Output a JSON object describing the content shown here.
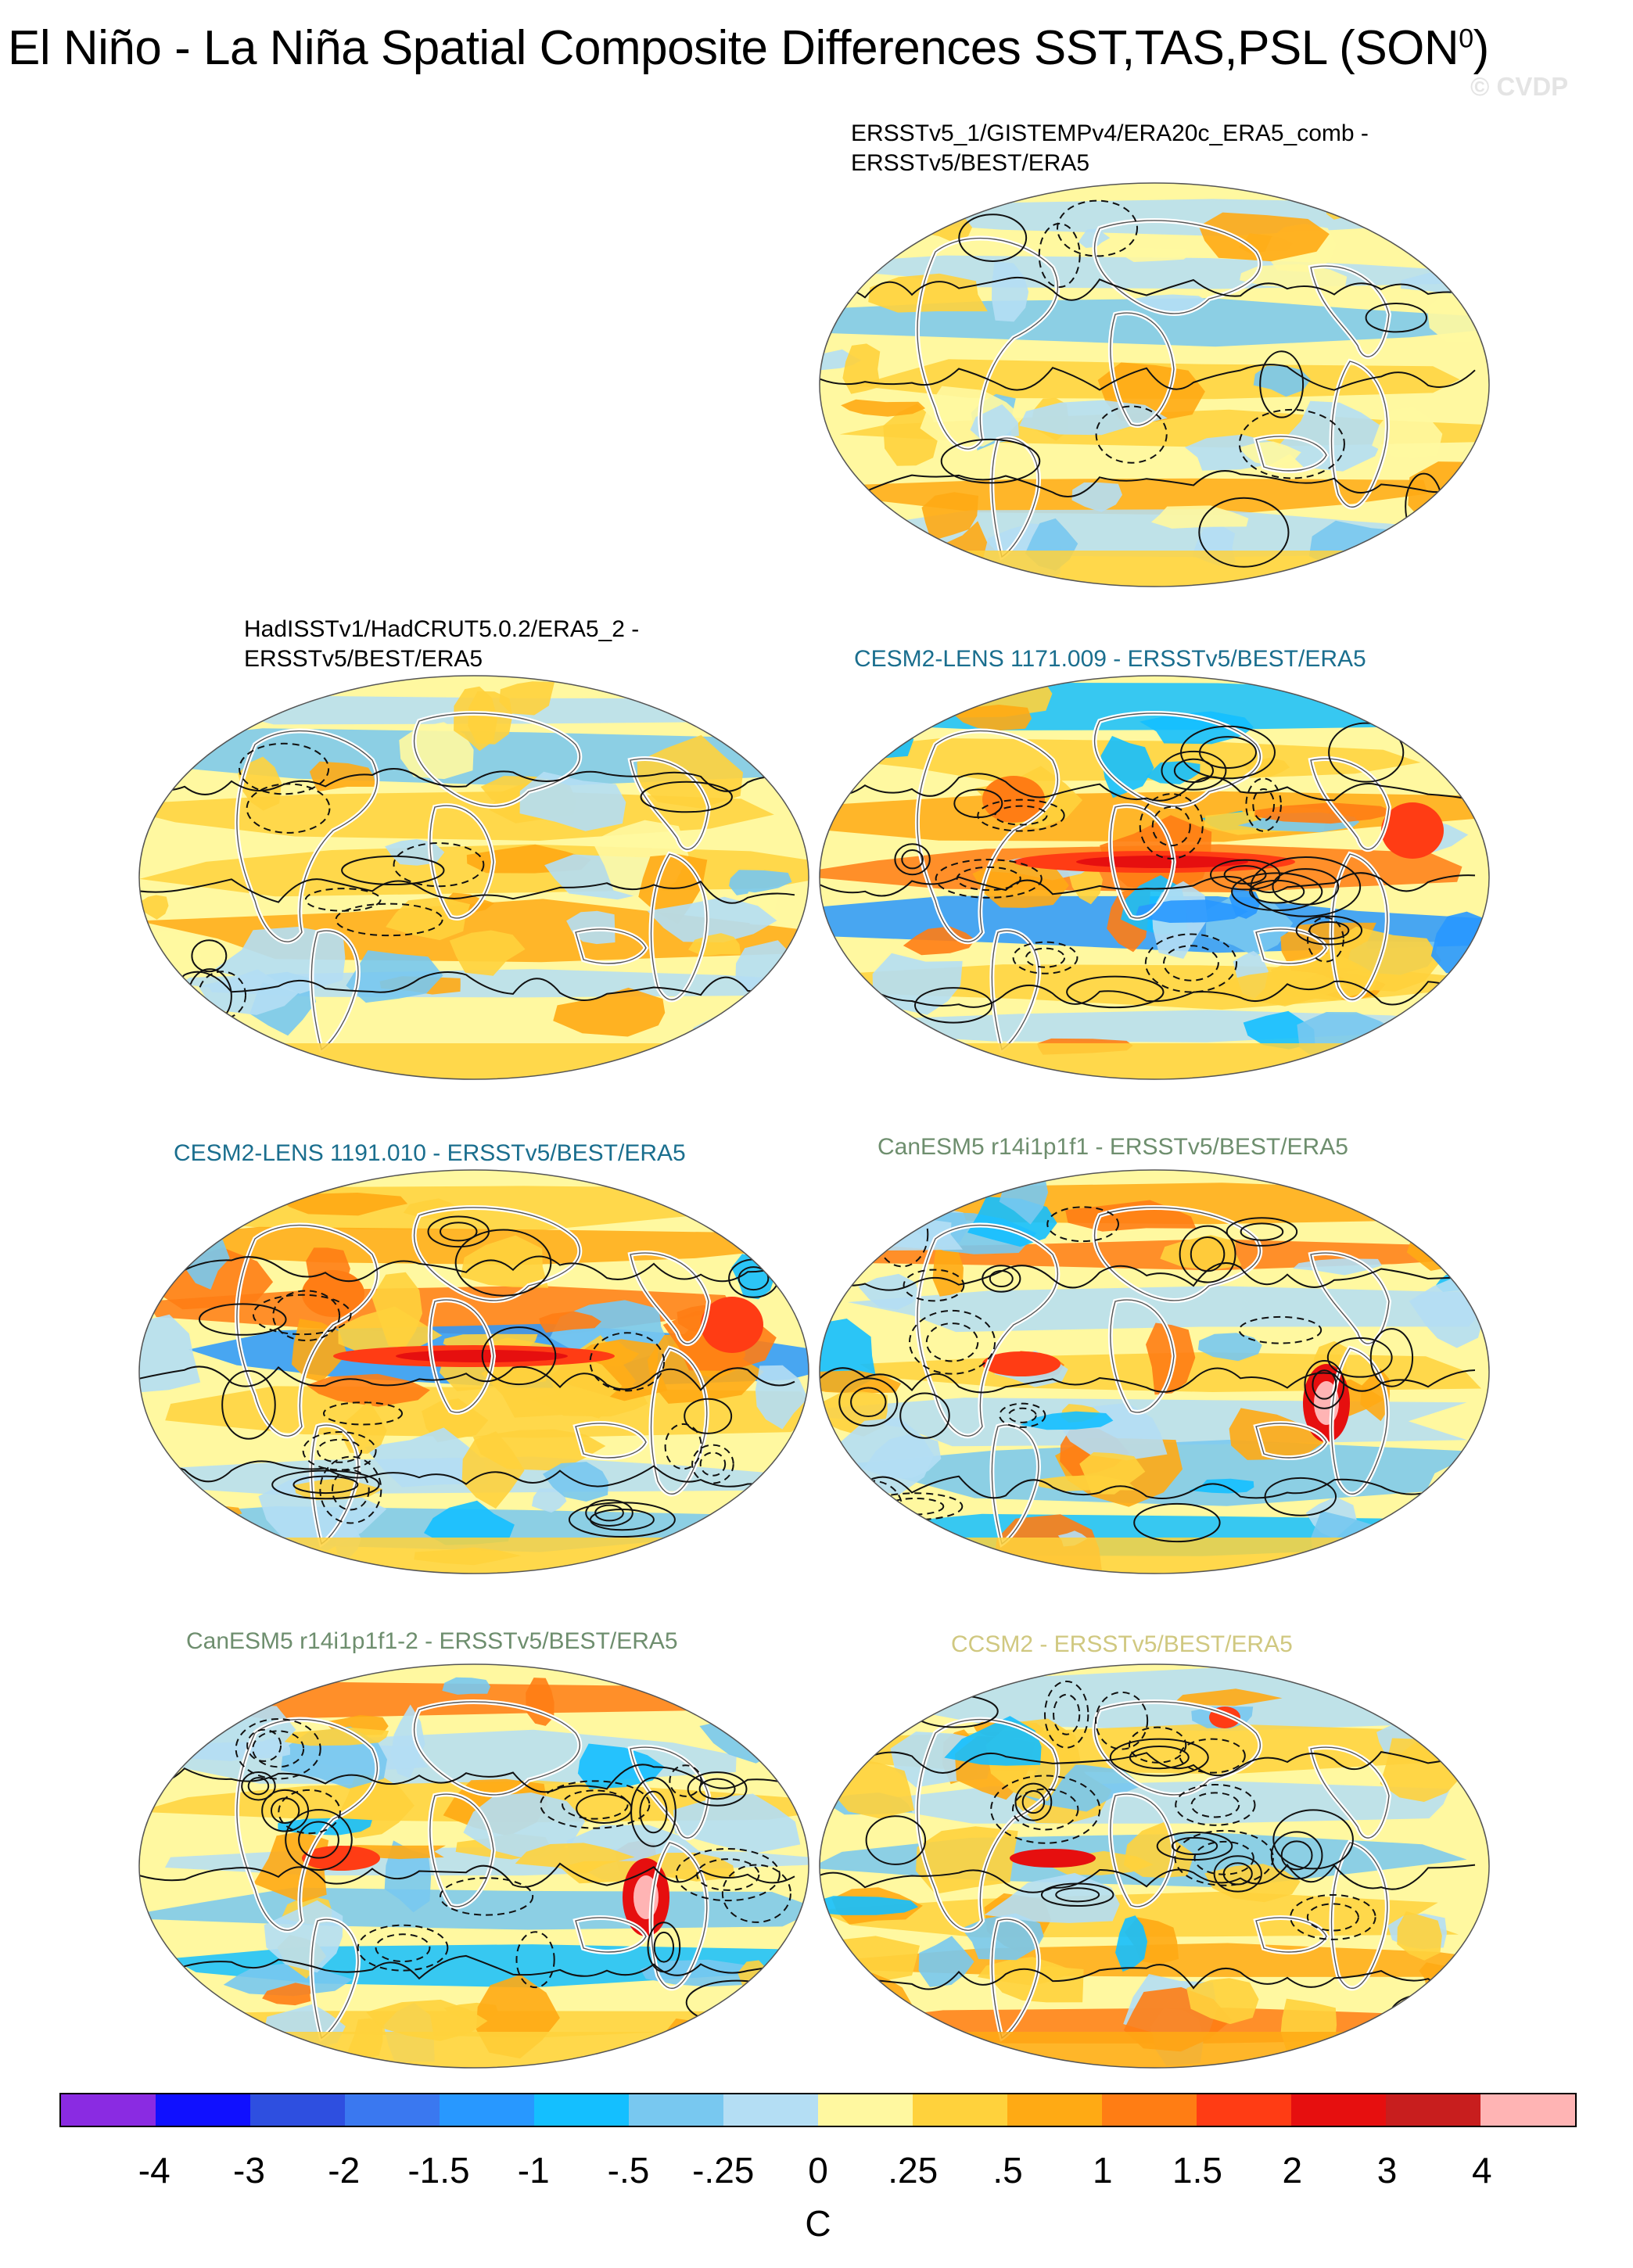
{
  "figure": {
    "title_main": "El Niño - La Niña Spatial Composite Differences SST,TAS,PSL (SON",
    "title_sup": "0",
    "title_close": ")",
    "watermark": "© CVDP"
  },
  "panels": [
    {
      "id": "p1",
      "line1": "ERSSTv5_1/GISTEMPv4/ERA20c_ERA5_comb -",
      "line2": "ERSSTv5/BEST/ERA5",
      "color": "#000000",
      "pattern": "observational-weak"
    },
    {
      "id": "p2",
      "line1": "HadISSTv1/HadCRUT5.0.2/ERA5_2 -",
      "line2": "ERSSTv5/BEST/ERA5",
      "color": "#000000",
      "pattern": "observational-weak"
    },
    {
      "id": "p3",
      "line1": "CESM2-LENS 1171.009 - ERSSTv5/BEST/ERA5",
      "line2": "",
      "color": "#1a6e8e",
      "pattern": "model-strong"
    },
    {
      "id": "p4",
      "line1": "CESM2-LENS 1191.010 - ERSSTv5/BEST/ERA5",
      "line2": "",
      "color": "#1a6e8e",
      "pattern": "model-strong"
    },
    {
      "id": "p5",
      "line1": "CanESM5 r14i1p1f1 - ERSSTv5/BEST/ERA5",
      "line2": "",
      "color": "#6e8e6e",
      "pattern": "model-amazon"
    },
    {
      "id": "p6",
      "line1": "CanESM5 r14i1p1f1-2 - ERSSTv5/BEST/ERA5",
      "line2": "",
      "color": "#6e8e6e",
      "pattern": "model-amazon"
    },
    {
      "id": "p7",
      "line1": "CCSM2 - ERSSTv5/BEST/ERA5",
      "line2": "",
      "color": "#d0c880",
      "pattern": "model-mixed"
    }
  ],
  "colorbar": {
    "colors": [
      "#8a2be2",
      "#1010ff",
      "#2e4fe0",
      "#3a78f0",
      "#2898ff",
      "#14bfff",
      "#78c8f0",
      "#b4def4",
      "#fff8a0",
      "#ffd23c",
      "#ffaa14",
      "#ff7d14",
      "#ff3c14",
      "#e60f0f",
      "#c81e1e",
      "#ffb4b4"
    ],
    "labels": [
      "-4",
      "-3",
      "-2",
      "-1.5",
      "-1",
      "-.5",
      "-.25",
      "0",
      ".25",
      ".5",
      "1",
      "1.5",
      "2",
      "3",
      "4"
    ],
    "units": "C"
  }
}
